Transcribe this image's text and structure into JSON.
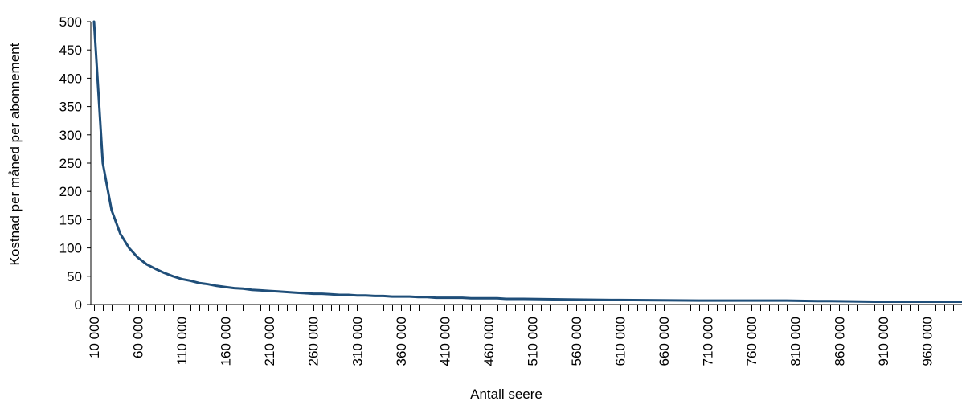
{
  "chart_data": {
    "type": "line",
    "title": "",
    "xlabel": "Antall seere",
    "ylabel": "Kostnad per måned per abonnement",
    "ylim": [
      0,
      500
    ],
    "xlim": [
      10000,
      1000000
    ],
    "y_ticks": [
      0,
      50,
      100,
      150,
      200,
      250,
      300,
      350,
      400,
      450,
      500
    ],
    "y_tick_labels": [
      "0",
      "50",
      "100",
      "150",
      "200",
      "250",
      "300",
      "350",
      "400",
      "450",
      "500"
    ],
    "x_tick_labels": [
      "10 000",
      "60 000",
      "110 000",
      "160 000",
      "210 000",
      "260 000",
      "310 000",
      "360 000",
      "410 000",
      "460 000",
      "510 000",
      "560 000",
      "610 000",
      "660 000",
      "710 000",
      "760 000",
      "810 000",
      "860 000",
      "910 000",
      "960 000"
    ],
    "x_tick_values": [
      10000,
      60000,
      110000,
      160000,
      210000,
      260000,
      310000,
      360000,
      410000,
      460000,
      510000,
      560000,
      610000,
      660000,
      710000,
      760000,
      810000,
      860000,
      910000,
      960000
    ],
    "x_minor_step": 10000,
    "grid": false,
    "legend": "none",
    "series": [
      {
        "color": "#1f4e79",
        "x": [
          10000,
          20000,
          30000,
          40000,
          50000,
          60000,
          70000,
          80000,
          90000,
          100000,
          110000,
          120000,
          130000,
          140000,
          150000,
          160000,
          170000,
          180000,
          190000,
          200000,
          210000,
          220000,
          230000,
          240000,
          250000,
          260000,
          270000,
          280000,
          290000,
          300000,
          310000,
          320000,
          330000,
          340000,
          350000,
          360000,
          370000,
          380000,
          390000,
          400000,
          410000,
          420000,
          430000,
          440000,
          450000,
          460000,
          470000,
          480000,
          490000,
          500000,
          550000,
          600000,
          610000,
          700000,
          800000,
          840000,
          850000,
          900000,
          1000000
        ],
        "y": [
          500,
          250,
          167,
          125,
          100,
          83,
          71,
          63,
          56,
          50,
          45,
          42,
          38,
          36,
          33,
          31,
          29,
          28,
          26,
          25,
          24,
          23,
          22,
          21,
          20,
          19,
          19,
          18,
          17,
          17,
          16,
          16,
          15,
          15,
          14,
          14,
          14,
          13,
          13,
          12,
          12,
          12,
          12,
          11,
          11,
          11,
          11,
          10,
          10,
          10,
          9,
          8,
          8,
          7,
          7,
          6,
          6,
          5,
          5
        ]
      }
    ]
  }
}
